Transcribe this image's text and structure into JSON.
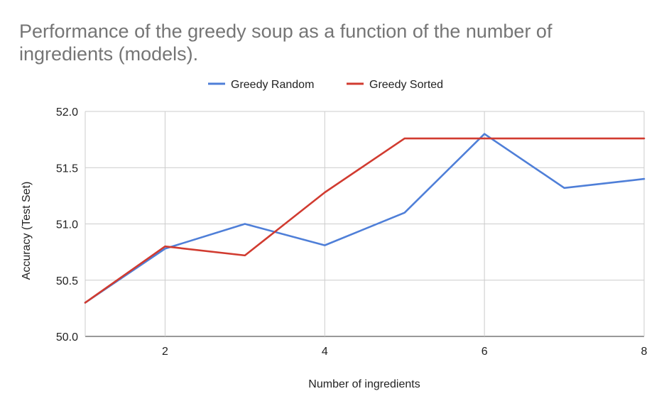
{
  "chart_data": {
    "type": "line",
    "title_lines": [
      "Performance of the greedy soup as a function of the number of",
      "ingredients (models)."
    ],
    "xlabel": "Number of ingredients",
    "ylabel": "Accuracy (Test Set)",
    "x": [
      1,
      2,
      3,
      4,
      5,
      6,
      7,
      8
    ],
    "xlim": [
      1,
      8
    ],
    "ylim": [
      50.0,
      52.0
    ],
    "x_ticks": [
      2,
      4,
      6,
      8
    ],
    "x_tick_labels": [
      "2",
      "4",
      "6",
      "8"
    ],
    "y_ticks": [
      50.0,
      50.5,
      51.0,
      51.5,
      52.0
    ],
    "y_tick_labels": [
      "50.0",
      "50.5",
      "51.0",
      "51.5",
      "52.0"
    ],
    "grid": true,
    "legend_position": "top-center",
    "series": [
      {
        "name": "Greedy Random",
        "color": "#4f7fd8",
        "values": [
          50.3,
          50.78,
          51.0,
          50.81,
          51.1,
          51.8,
          51.32,
          51.4
        ]
      },
      {
        "name": "Greedy Sorted",
        "color": "#d13b30",
        "values": [
          50.3,
          50.8,
          50.72,
          51.28,
          51.76,
          51.76,
          51.76,
          51.76
        ]
      }
    ]
  }
}
